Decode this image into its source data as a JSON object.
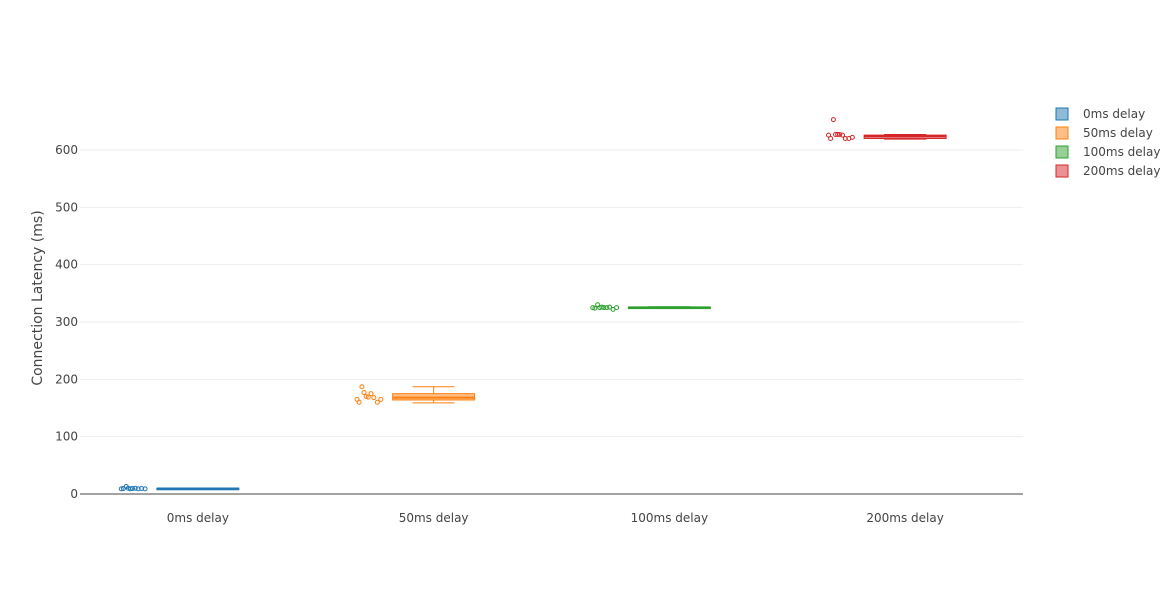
{
  "chart_data": {
    "type": "box",
    "ylabel": "Connection Latency (ms)",
    "ylim": [
      0,
      700
    ],
    "yticks": [
      0,
      100,
      200,
      300,
      400,
      500,
      600
    ],
    "yticks_label": [
      "0",
      "100",
      "200",
      "300",
      "400",
      "500",
      "600"
    ],
    "grid": true,
    "legend_position": "top-right",
    "categories": [
      "0ms delay",
      "50ms delay",
      "100ms delay",
      "200ms delay"
    ],
    "series": [
      {
        "name": "0ms delay",
        "color": "#1f77b4",
        "fill": "#8fbbd9",
        "box": {
          "min": 8.5,
          "q1": 9,
          "median": 9.5,
          "q3": 10,
          "max": 10.5
        },
        "points": [
          9,
          9.5,
          13,
          10,
          9,
          9.5,
          10,
          9,
          9.5,
          9
        ]
      },
      {
        "name": "50ms delay",
        "color": "#ff7f0e",
        "fill": "#ffbf86",
        "box": {
          "min": 159,
          "q1": 164,
          "median": 168,
          "q3": 175,
          "max": 187
        },
        "points": [
          165,
          160,
          187,
          177,
          170,
          169,
          175,
          168,
          160,
          165
        ]
      },
      {
        "name": "100ms delay",
        "color": "#2ca02c",
        "fill": "#95cf95",
        "box": {
          "min": 324,
          "q1": 325,
          "median": 325.5,
          "q3": 326,
          "max": 326.5
        },
        "points": [
          325,
          324,
          330,
          325,
          326,
          325,
          325,
          326,
          322,
          325
        ]
      },
      {
        "name": "200ms delay",
        "color": "#d62728",
        "fill": "#ea9293",
        "box": {
          "min": 619,
          "q1": 620,
          "median": 624,
          "q3": 626,
          "max": 627
        },
        "points": [
          626,
          620,
          653,
          627,
          627,
          627,
          626,
          620,
          620,
          622
        ]
      }
    ]
  }
}
